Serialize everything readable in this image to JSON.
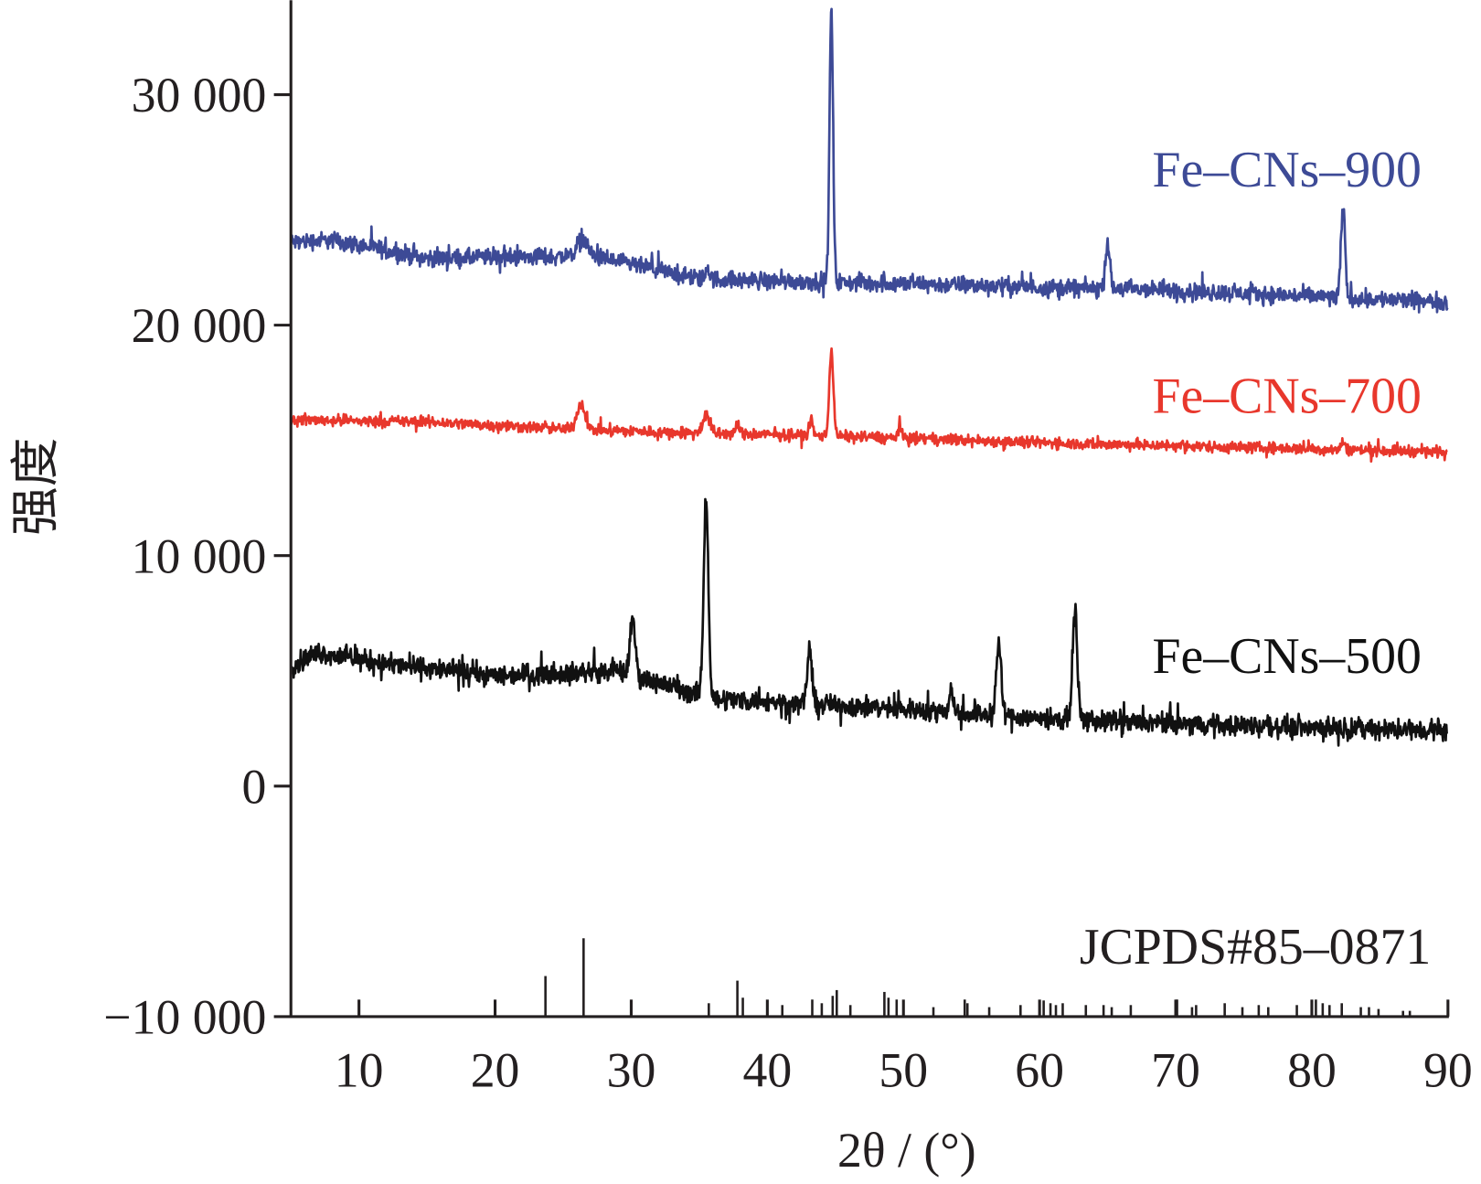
{
  "chart_data": {
    "type": "line",
    "title": "",
    "xlabel": "2θ / (°)",
    "ylabel": "强度",
    "xlim": [
      5,
      90
    ],
    "ylim": [
      -10000,
      34100
    ],
    "grid": false,
    "x_ticks": [
      10,
      20,
      30,
      40,
      50,
      60,
      70,
      80,
      90
    ],
    "x_tick_labels": [
      "10",
      "20",
      "30",
      "40",
      "50",
      "60",
      "70",
      "80",
      "90"
    ],
    "y_ticks": [
      -10000,
      0,
      10000,
      20000,
      30000
    ],
    "y_tick_labels": [
      "−10 000",
      "0",
      "10 000",
      "20 000",
      "30 000"
    ],
    "series": [
      {
        "name": "Fe–CNs–900",
        "color": "#3d4a96",
        "noise": 550,
        "baseline": [
          [
            5,
            23600
          ],
          [
            8,
            23700
          ],
          [
            15,
            22900
          ],
          [
            27,
            23000
          ],
          [
            35,
            22000
          ],
          [
            42,
            21900
          ],
          [
            50,
            21800
          ],
          [
            70,
            21500
          ],
          [
            90,
            21000
          ]
        ],
        "peaks": [
          [
            26.4,
            700,
            0.4
          ],
          [
            35.6,
            500,
            0.15
          ],
          [
            44.7,
            11800,
            0.13
          ],
          [
            65.0,
            2100,
            0.15
          ],
          [
            82.3,
            3800,
            0.15
          ]
        ]
      },
      {
        "name": "Fe–CNs–700",
        "color": "#e8372c",
        "noise": 350,
        "baseline": [
          [
            5,
            15900
          ],
          [
            15,
            15800
          ],
          [
            25,
            15500
          ],
          [
            35,
            15300
          ],
          [
            45,
            15200
          ],
          [
            60,
            14900
          ],
          [
            90,
            14500
          ]
        ],
        "peaks": [
          [
            26.3,
            1100,
            0.3
          ],
          [
            35.5,
            800,
            0.25
          ],
          [
            37.8,
            500,
            0.12
          ],
          [
            43.2,
            700,
            0.12
          ],
          [
            44.7,
            3700,
            0.15
          ],
          [
            49.7,
            500,
            0.12
          ],
          [
            82.3,
            300,
            0.15
          ]
        ]
      },
      {
        "name": "Fe–CNs–500",
        "color": "#111111",
        "noise": 650,
        "baseline": [
          [
            5,
            5200
          ],
          [
            7,
            5800
          ],
          [
            12,
            5300
          ],
          [
            20,
            4800
          ],
          [
            29,
            5000
          ],
          [
            33,
            4300
          ],
          [
            36,
            3800
          ],
          [
            50,
            3350
          ],
          [
            64,
            2800
          ],
          [
            90,
            2400
          ]
        ],
        "peaks": [
          [
            30.1,
            2300,
            0.2
          ],
          [
            35.5,
            8700,
            0.17
          ],
          [
            43.1,
            2400,
            0.17
          ],
          [
            53.5,
            1000,
            0.15
          ],
          [
            57.0,
            3100,
            0.18
          ],
          [
            62.6,
            4700,
            0.18
          ]
        ]
      }
    ],
    "reference": {
      "name": "JCPDS#85–0871",
      "base": -10000,
      "sticks": [
        [
          23.7,
          1760
        ],
        [
          26.5,
          3400
        ],
        [
          35.7,
          580
        ],
        [
          37.8,
          1560
        ],
        [
          38.2,
          820
        ],
        [
          41.1,
          500
        ],
        [
          43.3,
          740
        ],
        [
          44.0,
          580
        ],
        [
          44.8,
          900
        ],
        [
          45.1,
          1150
        ],
        [
          46.1,
          500
        ],
        [
          48.6,
          1070
        ],
        [
          48.9,
          820
        ],
        [
          49.5,
          740
        ],
        [
          52.2,
          410
        ],
        [
          54.5,
          740
        ],
        [
          54.7,
          580
        ],
        [
          56.3,
          410
        ],
        [
          58.6,
          500
        ],
        [
          60.3,
          700
        ],
        [
          60.8,
          580
        ],
        [
          61.2,
          500
        ],
        [
          61.7,
          580
        ],
        [
          63.4,
          500
        ],
        [
          64.7,
          500
        ],
        [
          65.3,
          410
        ],
        [
          66.7,
          500
        ],
        [
          70.1,
          740
        ],
        [
          71.2,
          410
        ],
        [
          71.5,
          500
        ],
        [
          73.6,
          580
        ],
        [
          74.9,
          410
        ],
        [
          76.1,
          500
        ],
        [
          76.8,
          410
        ],
        [
          78.9,
          500
        ],
        [
          80.3,
          740
        ],
        [
          80.8,
          580
        ],
        [
          81.3,
          500
        ],
        [
          82.2,
          580
        ],
        [
          83.6,
          410
        ],
        [
          84.2,
          410
        ],
        [
          84.9,
          330
        ],
        [
          86.7,
          250
        ],
        [
          87.2,
          250
        ]
      ]
    }
  }
}
